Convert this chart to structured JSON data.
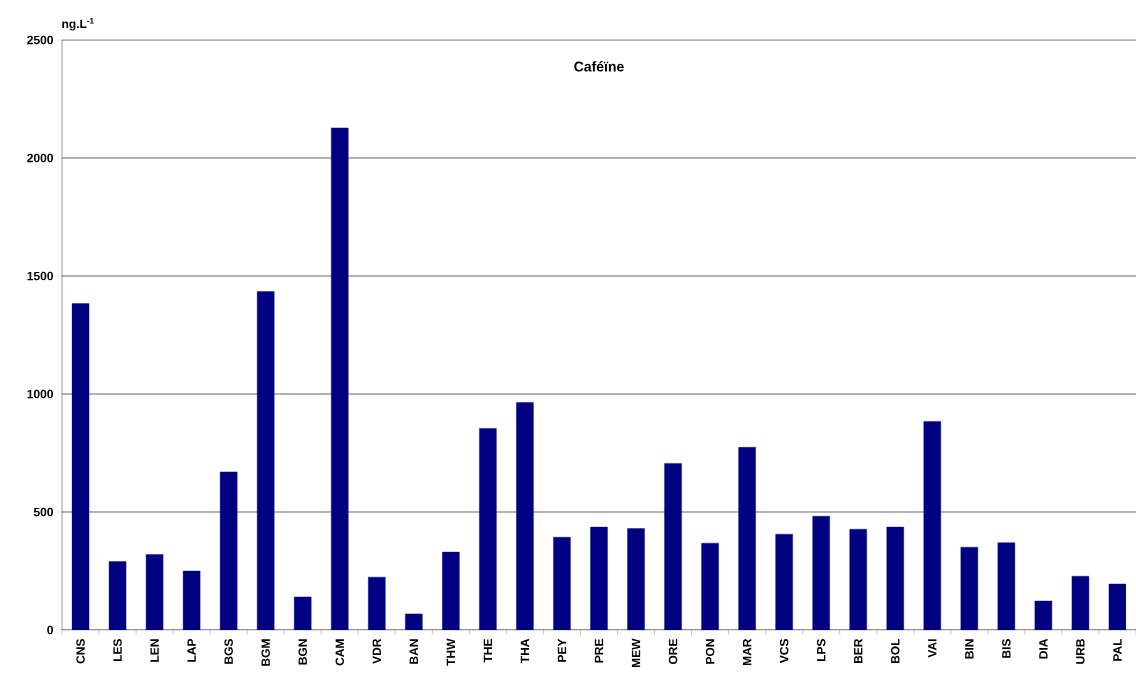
{
  "chart_data": {
    "type": "bar",
    "title": "Caféïne",
    "ylabel": "ng.L$^{-1}$",
    "categories": [
      "CNS",
      "LES",
      "LEN",
      "LAP",
      "BGS",
      "BGM",
      "BGN",
      "CAM",
      "VDR",
      "BAN",
      "THW",
      "THE",
      "THA",
      "PEY",
      "PRE",
      "MEW",
      "ORE",
      "PON",
      "MAR",
      "VCS",
      "LPS",
      "BER",
      "BOL",
      "VAI",
      "BIN",
      "BIS",
      "DIA",
      "URB",
      "PAL"
    ],
    "values": [
      1383,
      290,
      320,
      250,
      670,
      1434,
      140,
      2128,
      224,
      68,
      330,
      854,
      964,
      393,
      436,
      430,
      706,
      368,
      774,
      406,
      482,
      427,
      436,
      884,
      351,
      370,
      123,
      228,
      195
    ],
    "color": "#000080",
    "ylim": [
      0,
      2500
    ],
    "yticks": [
      0,
      500,
      1000,
      1500,
      2000,
      2500
    ],
    "grid": "y"
  }
}
